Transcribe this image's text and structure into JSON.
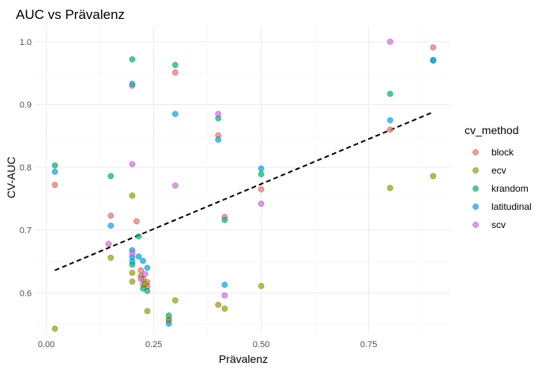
{
  "chart_data": {
    "type": "scatter",
    "title": "AUC vs Prävalenz",
    "xlabel": "Prävalenz",
    "ylabel": "CV-AUC",
    "xlim": [
      -0.025,
      0.94
    ],
    "ylim": [
      0.535,
      1.025
    ],
    "x_ticks": [
      0.0,
      0.25,
      0.5,
      0.75
    ],
    "x_tick_labels": [
      "0.00",
      "0.25",
      "0.50",
      "0.75"
    ],
    "y_ticks": [
      0.6,
      0.7,
      0.8,
      0.9,
      1.0
    ],
    "y_tick_labels": [
      "0.6",
      "0.7",
      "0.8",
      "0.9",
      "1.0"
    ],
    "grid": true,
    "legend": {
      "title": "cv_method",
      "position": "right"
    },
    "trend_line": {
      "style": "dashed",
      "color": "#000000",
      "x": [
        0.02,
        0.9
      ],
      "y": [
        0.636,
        0.888
      ]
    },
    "series": [
      {
        "name": "block",
        "color": "#F8766D",
        "points": [
          [
            0.02,
            0.772
          ],
          [
            0.15,
            0.723
          ],
          [
            0.2,
            0.93
          ],
          [
            0.21,
            0.714
          ],
          [
            0.22,
            0.636
          ],
          [
            0.225,
            0.613
          ],
          [
            0.235,
            0.617
          ],
          [
            0.235,
            0.61
          ],
          [
            0.285,
            0.556
          ],
          [
            0.3,
            0.951
          ],
          [
            0.4,
            0.851
          ],
          [
            0.415,
            0.721
          ],
          [
            0.5,
            0.765
          ],
          [
            0.8,
            0.86
          ],
          [
            0.9,
            0.991
          ]
        ]
      },
      {
        "name": "ecv",
        "color": "#A3A500",
        "points": [
          [
            0.02,
            0.543
          ],
          [
            0.15,
            0.656
          ],
          [
            0.2,
            0.755
          ],
          [
            0.2,
            0.632
          ],
          [
            0.2,
            0.618
          ],
          [
            0.22,
            0.627
          ],
          [
            0.225,
            0.622
          ],
          [
            0.23,
            0.614
          ],
          [
            0.235,
            0.571
          ],
          [
            0.285,
            0.558
          ],
          [
            0.3,
            0.588
          ],
          [
            0.4,
            0.581
          ],
          [
            0.415,
            0.575
          ],
          [
            0.5,
            0.611
          ],
          [
            0.8,
            0.767
          ],
          [
            0.9,
            0.786
          ]
        ]
      },
      {
        "name": "krandom",
        "color": "#00BF7D",
        "points": [
          [
            0.02,
            0.803
          ],
          [
            0.15,
            0.786
          ],
          [
            0.2,
            0.972
          ],
          [
            0.2,
            0.645
          ],
          [
            0.215,
            0.69
          ],
          [
            0.225,
            0.607
          ],
          [
            0.235,
            0.603
          ],
          [
            0.285,
            0.564
          ],
          [
            0.3,
            0.963
          ],
          [
            0.4,
            0.878
          ],
          [
            0.415,
            0.716
          ],
          [
            0.5,
            0.789
          ],
          [
            0.8,
            0.917
          ]
        ]
      },
      {
        "name": "latitudinal",
        "color": "#00B0F6",
        "points": [
          [
            0.02,
            0.793
          ],
          [
            0.15,
            0.707
          ],
          [
            0.2,
            0.933
          ],
          [
            0.2,
            0.668
          ],
          [
            0.2,
            0.657
          ],
          [
            0.2,
            0.65
          ],
          [
            0.215,
            0.658
          ],
          [
            0.225,
            0.651
          ],
          [
            0.235,
            0.64
          ],
          [
            0.285,
            0.551
          ],
          [
            0.3,
            0.885
          ],
          [
            0.4,
            0.844
          ],
          [
            0.415,
            0.613
          ],
          [
            0.5,
            0.798
          ],
          [
            0.8,
            0.875
          ],
          [
            0.9,
            0.97
          ],
          [
            0.9,
            0.971
          ]
        ]
      },
      {
        "name": "scv",
        "color": "#E76BF3",
        "points": [
          [
            0.145,
            0.678
          ],
          [
            0.2,
            0.805
          ],
          [
            0.2,
            0.663
          ],
          [
            0.22,
            0.622
          ],
          [
            0.23,
            0.63
          ],
          [
            0.3,
            0.771
          ],
          [
            0.4,
            0.885
          ],
          [
            0.415,
            0.596
          ],
          [
            0.5,
            0.742
          ],
          [
            0.8,
            1.0
          ]
        ]
      }
    ]
  }
}
